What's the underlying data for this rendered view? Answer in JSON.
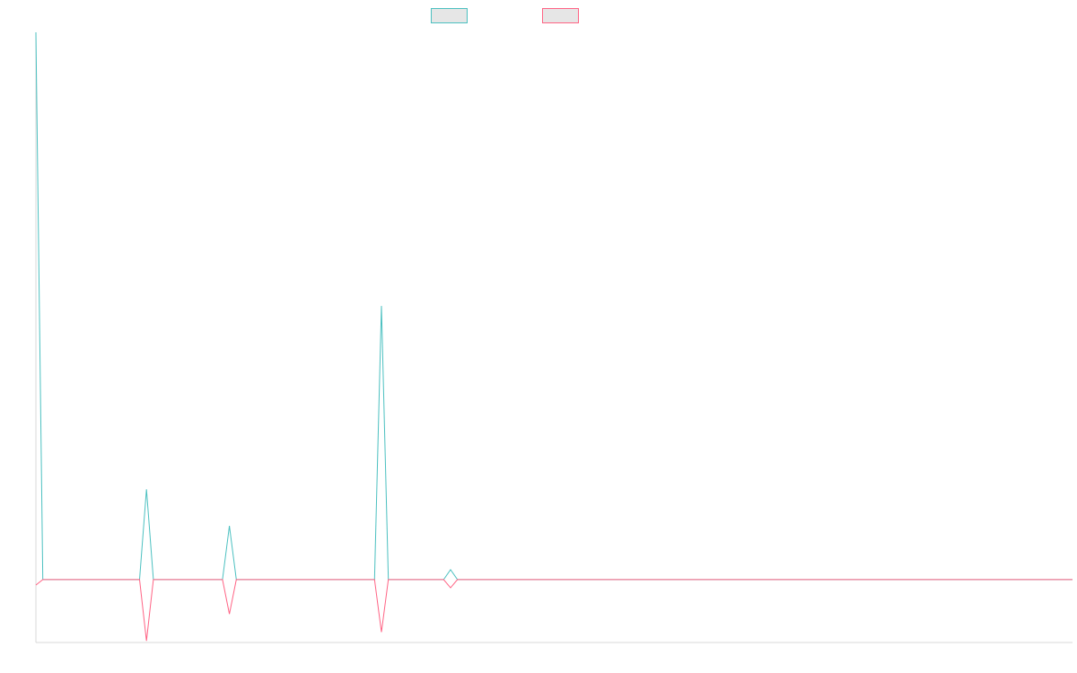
{
  "chart_data": {
    "type": "line",
    "title": "",
    "xlabel": "",
    "ylabel": "",
    "grid": false,
    "legend_position": "top-center",
    "ylim": [
      -11.5,
      100
    ],
    "x": [
      0,
      1,
      2,
      3,
      4,
      5,
      6,
      7,
      8,
      9,
      10,
      11,
      12,
      13,
      14,
      15,
      16,
      17,
      18,
      19,
      20,
      21,
      22,
      23,
      24,
      25,
      26,
      27,
      28,
      29,
      30,
      31,
      32,
      33,
      34,
      35,
      36,
      37,
      38,
      39,
      40,
      41,
      42,
      43,
      44,
      45,
      46,
      47,
      48,
      49,
      50,
      51,
      52,
      53,
      54,
      55,
      56,
      57,
      58,
      59,
      60,
      61,
      62,
      63,
      64,
      65,
      66,
      67,
      68,
      69,
      70,
      71,
      72,
      73,
      74,
      75,
      76,
      77,
      78,
      79,
      80,
      81,
      82,
      83,
      84,
      85,
      86,
      87,
      88,
      89,
      90,
      91,
      92,
      93,
      94,
      95,
      96,
      97,
      98,
      99,
      100,
      101,
      102,
      103,
      104,
      105,
      106,
      107,
      108,
      109,
      110,
      111,
      112,
      113,
      114,
      115,
      116,
      117,
      118,
      119,
      120,
      121,
      122,
      123,
      124,
      125,
      126,
      127,
      128,
      129,
      130,
      131,
      132,
      133,
      134,
      135,
      136,
      137,
      138,
      139,
      140,
      141,
      142,
      143,
      144,
      145,
      146,
      147,
      148,
      149,
      150
    ],
    "series": [
      {
        "name": "",
        "color": "#4bc0c0",
        "values": [
          100,
          0,
          0,
          0,
          0,
          0,
          0,
          0,
          0,
          0,
          0,
          0,
          0,
          0,
          0,
          0,
          16.5,
          0,
          0,
          0,
          0,
          0,
          0,
          0,
          0,
          0,
          0,
          0,
          9.8,
          0,
          0,
          0,
          0,
          0,
          0,
          0,
          0,
          0,
          0,
          0,
          0,
          0,
          0,
          0,
          0,
          0,
          0,
          0,
          0,
          0,
          50,
          0,
          0,
          0,
          0,
          0,
          0,
          0,
          0,
          0,
          1.8,
          0,
          0,
          0,
          0,
          0,
          0,
          0,
          0,
          0,
          0,
          0,
          0,
          0,
          0,
          0,
          0,
          0,
          0,
          0,
          0,
          0,
          0,
          0,
          0,
          0,
          0,
          0,
          0,
          0,
          0,
          0,
          0,
          0,
          0,
          0,
          0,
          0,
          0,
          0,
          0,
          0,
          0,
          0,
          0,
          0,
          0,
          0,
          0,
          0,
          0,
          0,
          0,
          0,
          0,
          0,
          0,
          0,
          0,
          0,
          0,
          0,
          0,
          0,
          0,
          0,
          0,
          0,
          0,
          0,
          0,
          0,
          0,
          0,
          0,
          0,
          0,
          0,
          0,
          0,
          0,
          0,
          0,
          0,
          0,
          0,
          0,
          0,
          0,
          0,
          0
        ]
      },
      {
        "name": "",
        "color": "#ff6384",
        "values": [
          -1,
          0,
          0,
          0,
          0,
          0,
          0,
          0,
          0,
          0,
          0,
          0,
          0,
          0,
          0,
          0,
          -11.2,
          0,
          0,
          0,
          0,
          0,
          0,
          0,
          0,
          0,
          0,
          0,
          -6.3,
          0,
          0,
          0,
          0,
          0,
          0,
          0,
          0,
          0,
          0,
          0,
          0,
          0,
          0,
          0,
          0,
          0,
          0,
          0,
          0,
          0,
          -9.6,
          0,
          0,
          0,
          0,
          0,
          0,
          0,
          0,
          0,
          -1.5,
          0,
          0,
          0,
          0,
          0,
          0,
          0,
          0,
          0,
          0,
          0,
          0,
          0,
          0,
          0,
          0,
          0,
          0,
          0,
          0,
          0,
          0,
          0,
          0,
          0,
          0,
          0,
          0,
          0,
          0,
          0,
          0,
          0,
          0,
          0,
          0,
          0,
          0,
          0,
          0,
          0,
          0,
          0,
          0,
          0,
          0,
          0,
          0,
          0,
          0,
          0,
          0,
          0,
          0,
          0,
          0,
          0,
          0,
          0,
          0,
          0,
          0,
          0,
          0,
          0,
          0,
          0,
          0,
          0,
          0,
          0,
          0,
          0,
          0,
          0,
          0,
          0,
          0,
          0,
          0,
          0,
          0,
          0,
          0,
          0,
          0,
          0,
          0,
          0,
          0
        ]
      }
    ]
  }
}
